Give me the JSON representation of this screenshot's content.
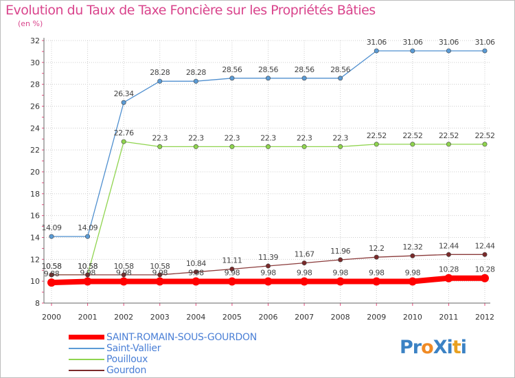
{
  "title": "Evolution du Taux de Taxe Foncière sur les Propriétés Bâties",
  "unit_label": "(en %)",
  "colors": {
    "title": "#d9448c",
    "grid": "#cccccc",
    "axis": "#666666",
    "legend_text": "#4a7fd6",
    "tick_minor": "#e8487a"
  },
  "logo": {
    "text": "ProXiti",
    "letters": [
      {
        "ch": "P",
        "color": "#3b82c4"
      },
      {
        "ch": "r",
        "color": "#3b82c4"
      },
      {
        "ch": "o",
        "color": "#f08a24"
      },
      {
        "ch": "X",
        "color": "#3b82c4"
      },
      {
        "ch": "i",
        "color": "#3b82c4"
      },
      {
        "ch": "t",
        "color": "#e8a020"
      },
      {
        "ch": "i",
        "color": "#3b82c4"
      }
    ]
  },
  "chart_data": {
    "type": "line",
    "title": "Evolution du Taux de Taxe Foncière sur les Propriétés Bâties",
    "ylabel": "(en %)",
    "xlabel": "",
    "x": [
      "2000",
      "2001",
      "2002",
      "2003",
      "2004",
      "2005",
      "2006",
      "2007",
      "2008",
      "2009",
      "2010",
      "2011",
      "2012"
    ],
    "ylim": [
      8,
      32
    ],
    "yticks": [
      8,
      10,
      12,
      14,
      16,
      18,
      20,
      22,
      24,
      26,
      28,
      30,
      32
    ],
    "grid": true,
    "legend_position": "bottom-left",
    "series": [
      {
        "name": "Saint-Vallier",
        "color": "#5b9bd5",
        "stroke": "#4f8fcf",
        "lineWidth": 1.3,
        "values": [
          14.09,
          14.09,
          26.34,
          28.28,
          28.28,
          28.56,
          28.56,
          28.56,
          28.56,
          31.06,
          31.06,
          31.06,
          31.06
        ],
        "labels": [
          "14.09",
          "14.09",
          "26.34",
          "28.28",
          "28.28",
          "28.56",
          "28.56",
          "28.56",
          "28.56",
          "31.06",
          "31.06",
          "31.06",
          "31.06"
        ]
      },
      {
        "name": "Pouilloux",
        "color": "#8fd44e",
        "stroke": "#8fd44e",
        "lineWidth": 1.3,
        "values": [
          10.58,
          10.58,
          22.76,
          22.3,
          22.3,
          22.3,
          22.3,
          22.3,
          22.3,
          22.52,
          22.52,
          22.52,
          22.52
        ],
        "labels": [
          "10.58",
          "10.58",
          "22.76",
          "22.3",
          "22.3",
          "22.3",
          "22.3",
          "22.3",
          "22.3",
          "22.52",
          "22.52",
          "22.52",
          "22.52"
        ]
      },
      {
        "name": "Gourdon",
        "color": "#7a2a2a",
        "stroke": "#8a3a3a",
        "lineWidth": 1.3,
        "values": [
          10.58,
          10.58,
          10.58,
          10.58,
          10.84,
          11.11,
          11.39,
          11.67,
          11.96,
          12.2,
          12.32,
          12.44,
          12.44
        ],
        "labels": [
          "10.58",
          "10.58",
          "10.58",
          "10.58",
          "10.84",
          "11.11",
          "11.39",
          "11.67",
          "11.96",
          "12.2",
          "12.32",
          "12.44",
          "12.44"
        ]
      },
      {
        "name": "SAINT-ROMAIN-SOUS-GOURDON",
        "color": "#ff0000",
        "stroke": "#ff0000",
        "lineWidth": 8,
        "values": [
          9.88,
          9.98,
          9.98,
          9.98,
          9.98,
          9.98,
          9.98,
          9.98,
          9.98,
          9.98,
          9.98,
          10.28,
          10.28
        ],
        "labels": [
          "9.88",
          "9.98",
          "9.98",
          "9.98",
          "9.98",
          "9.98",
          "9.98",
          "9.98",
          "9.98",
          "9.98",
          "9.98",
          "10.28",
          "10.28"
        ]
      }
    ],
    "legend": [
      {
        "name": "SAINT-ROMAIN-SOUS-GOURDON",
        "color": "#ff0000"
      },
      {
        "name": "Saint-Vallier",
        "color": "#5b9bd5"
      },
      {
        "name": "Pouilloux",
        "color": "#8fd44e"
      },
      {
        "name": "Gourdon",
        "color": "#7a2a2a"
      }
    ]
  }
}
